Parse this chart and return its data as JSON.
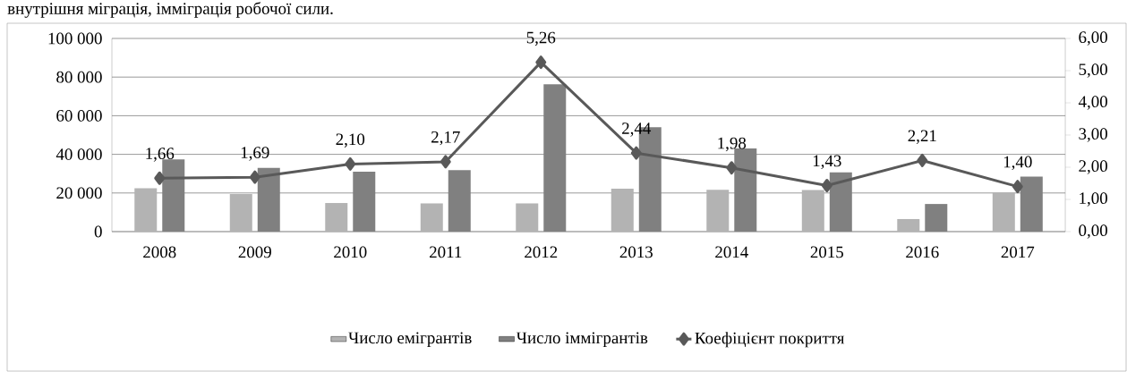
{
  "chart_data": {
    "type": "bar",
    "annotations": [
      "внутрішня міграція, імміграція робочої сили."
    ],
    "categories": [
      "2008",
      "2009",
      "2010",
      "2011",
      "2012",
      "2013",
      "2014",
      "2015",
      "2016",
      "2017"
    ],
    "series": [
      {
        "name": "Число емігрантів",
        "color": "#b3b3b3",
        "values": [
          22500,
          19500,
          14800,
          14600,
          14600,
          22200,
          21600,
          21500,
          6500,
          20200
        ]
      },
      {
        "name": "Число іммігрантів",
        "color": "#808080",
        "values": [
          37400,
          33000,
          31000,
          31800,
          76300,
          54000,
          43000,
          30700,
          14300,
          28500
        ]
      },
      {
        "name": "Коефіцієнт покриття",
        "type": "line",
        "axis": "y2",
        "color": "#595959",
        "marker": "diamond",
        "values": [
          1.66,
          1.69,
          2.1,
          2.17,
          5.26,
          2.44,
          1.98,
          1.43,
          2.21,
          1.4
        ],
        "value_labels": [
          "1,66",
          "1,69",
          "2,10",
          "2,17",
          "5,26",
          "2,44",
          "1,98",
          "1,43",
          "2,21",
          "1,40"
        ]
      }
    ],
    "ylim": [
      0,
      100000
    ],
    "yticks": [
      {
        "value": 0,
        "label": "0"
      },
      {
        "value": 20000,
        "label": "20 000"
      },
      {
        "value": 40000,
        "label": "40 000"
      },
      {
        "value": 60000,
        "label": "60 000"
      },
      {
        "value": 80000,
        "label": "80 000"
      },
      {
        "value": 100000,
        "label": "100 000"
      }
    ],
    "y2lim": [
      0,
      6
    ],
    "y2ticks": [
      {
        "value": 0,
        "label": "0,00"
      },
      {
        "value": 1,
        "label": "1,00"
      },
      {
        "value": 2,
        "label": "2,00"
      },
      {
        "value": 3,
        "label": "3,00"
      },
      {
        "value": 4,
        "label": "4,00"
      },
      {
        "value": 5,
        "label": "5,00"
      },
      {
        "value": 6,
        "label": "6,00"
      }
    ],
    "grid": "y",
    "legend": "bottom"
  }
}
